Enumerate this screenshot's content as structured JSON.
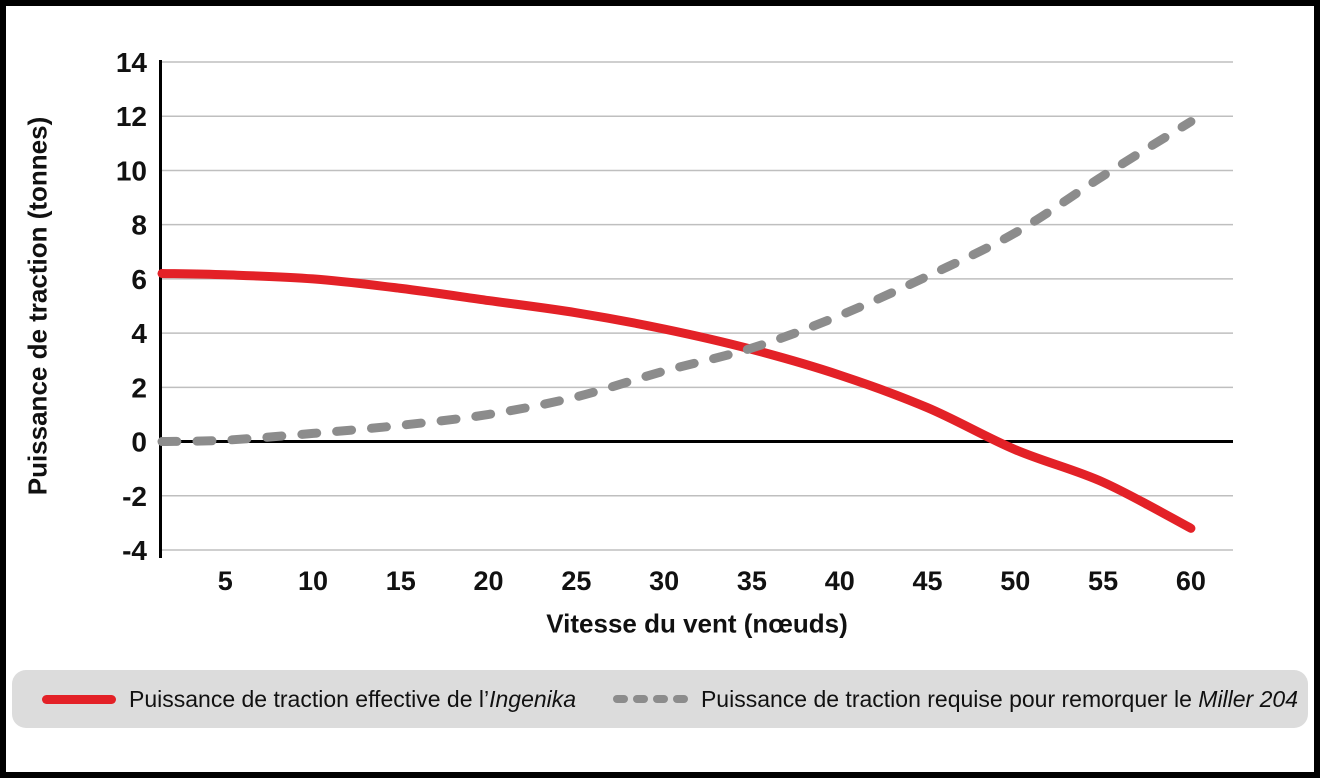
{
  "chart_data": {
    "type": "line",
    "title": "",
    "xlabel": "Vitesse du vent (nœuds)",
    "ylabel": "Puissance de traction (tonnes)",
    "x_range": [
      1.4,
      62.4
    ],
    "y_range": [
      -4,
      14
    ],
    "x_ticks": [
      5,
      10,
      15,
      20,
      25,
      30,
      35,
      40,
      45,
      50,
      55,
      60
    ],
    "y_ticks": [
      -4,
      -2,
      0,
      2,
      4,
      6,
      8,
      10,
      12,
      14
    ],
    "grid": true,
    "legend_position": "bottom",
    "x": [
      1.4,
      5,
      10,
      15,
      20,
      25,
      30,
      35,
      40,
      45,
      50,
      55,
      60
    ],
    "series": [
      {
        "name": "Puissance de traction effective de l’Ingenika",
        "style": "solid",
        "color": "#e32127",
        "values": [
          6.2,
          6.15,
          6.0,
          5.65,
          5.2,
          4.75,
          4.15,
          3.4,
          2.45,
          1.25,
          -0.3,
          -1.5,
          -3.2
        ]
      },
      {
        "name": "Puissance de traction requise pour remorquer le Miller 204",
        "style": "dashed",
        "color": "#8c8c8c",
        "values": [
          0.0,
          0.05,
          0.3,
          0.6,
          1.0,
          1.65,
          2.6,
          3.45,
          4.65,
          6.1,
          7.7,
          9.8,
          11.8
        ]
      }
    ]
  },
  "axes": {
    "y_title": "Puissance de traction (tonnes)",
    "x_title": "Vitesse du vent (nœuds)"
  },
  "legend": {
    "items": [
      {
        "prefix": "Puissance de traction effective de l’",
        "italic": "Ingenika"
      },
      {
        "prefix": "Puissance de traction requise pour remorquer le ",
        "italic": "Miller 204"
      }
    ]
  },
  "colors": {
    "series_red": "#e32127",
    "series_gray": "#8c8c8c",
    "gridline": "#bfbfbf",
    "zero_line": "#000000",
    "legend_bg": "#dcdcdc",
    "frame_border": "#000000"
  }
}
